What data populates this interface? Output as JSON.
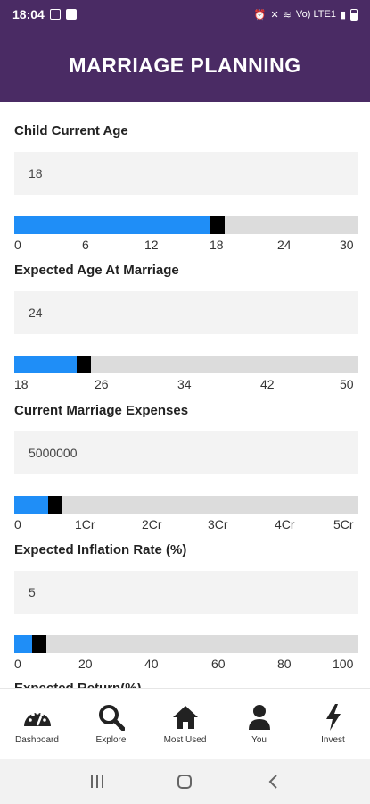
{
  "status_bar": {
    "time": "18:04",
    "network": "Vo) LTE1"
  },
  "header": {
    "title": "MARRIAGE PLANNING"
  },
  "fields": [
    {
      "label": "Child Current Age",
      "value": "18",
      "ticks": [
        "0",
        "6",
        "12",
        "18",
        "24",
        "30"
      ],
      "slider_fraction": 0.6
    },
    {
      "label": "Expected Age At Marriage",
      "value": "24",
      "ticks": [
        "18",
        "26",
        "34",
        "42",
        "50"
      ],
      "slider_fraction": 0.2
    },
    {
      "label": "Current Marriage Expenses",
      "value": "5000000",
      "ticks": [
        "0",
        "1Cr",
        "2Cr",
        "3Cr",
        "4Cr",
        "5Cr"
      ],
      "slider_fraction": 0.1
    },
    {
      "label": "Expected Inflation Rate (%)",
      "value": "5",
      "ticks": [
        "0",
        "20",
        "40",
        "60",
        "80",
        "100"
      ],
      "slider_fraction": 0.05
    }
  ],
  "next_field_label": "Expected Return(%)",
  "nav": [
    {
      "label": "Dashboard",
      "icon": "dashboard-icon"
    },
    {
      "label": "Explore",
      "icon": "search-icon"
    },
    {
      "label": "Most Used",
      "icon": "home-icon"
    },
    {
      "label": "You",
      "icon": "user-icon"
    },
    {
      "label": "Invest",
      "icon": "lightning-icon"
    }
  ],
  "colors": {
    "header_bg": "#4a2b64",
    "slider_fill": "#1f8ef7",
    "slider_track": "#dcdcdc",
    "thumb": "#000000",
    "input_bg": "#f3f3f3"
  }
}
